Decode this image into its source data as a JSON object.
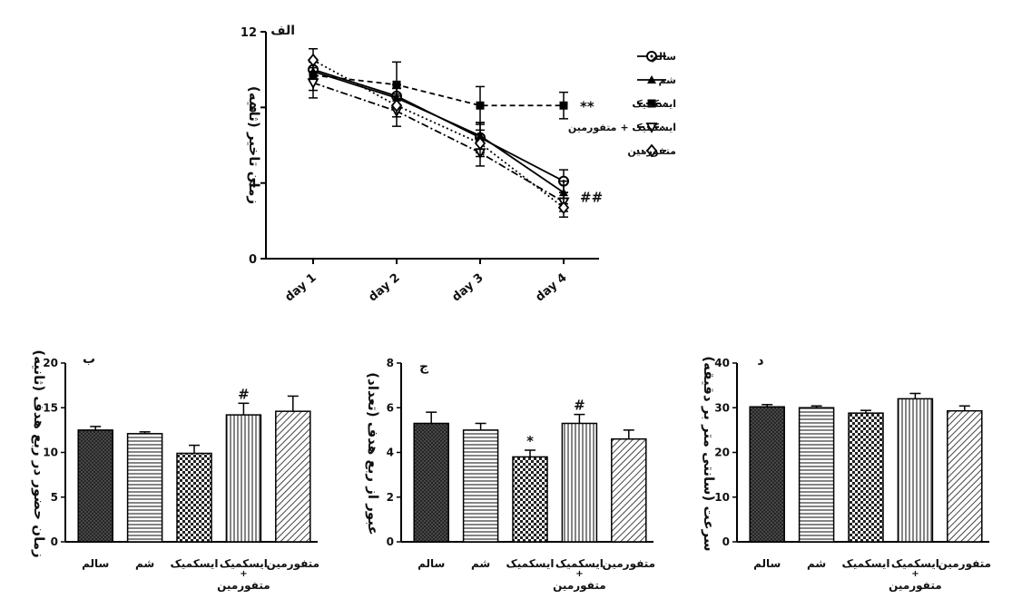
{
  "chart_data": [
    {
      "type": "line",
      "panel_label": "الف",
      "ylabel": "زمان تاخیر (ثانیه)",
      "categories": [
        "day 1",
        "day 2",
        "day 3",
        "day 4"
      ],
      "ylim": [
        0,
        12
      ],
      "yticks": [
        0,
        4,
        8,
        12
      ],
      "legend_position": "right",
      "series": [
        {
          "name": "سالم",
          "marker": "circle-dot",
          "dash": "solid",
          "values": [
            10.0,
            8.6,
            6.4,
            4.1
          ],
          "err": [
            0.5,
            0.6,
            0.8,
            0.6
          ]
        },
        {
          "name": "شم",
          "marker": "triangle-filled",
          "dash": "solid",
          "values": [
            9.9,
            8.5,
            6.5,
            3.5
          ],
          "err": [
            0.5,
            0.5,
            0.7,
            0.6
          ]
        },
        {
          "name": "ایسکمیک",
          "marker": "square-filled",
          "dash": "dashed",
          "values": [
            9.7,
            9.2,
            8.1,
            8.1
          ],
          "err": [
            0.8,
            1.2,
            1.0,
            0.7
          ]
        },
        {
          "name": "ایسکمیک + متفورمین",
          "marker": "triangle-down-open",
          "dash": "dashdot",
          "values": [
            9.3,
            7.8,
            5.6,
            3.0
          ],
          "err": [
            0.8,
            0.8,
            0.7,
            0.5
          ]
        },
        {
          "name": "متفورمین",
          "marker": "diamond-open",
          "dash": "dotted",
          "values": [
            10.5,
            8.1,
            6.1,
            2.7
          ],
          "err": [
            0.6,
            0.6,
            0.7,
            0.5
          ]
        }
      ],
      "annotations": [
        {
          "text": "**",
          "category": "day 4",
          "value": 8.1,
          "series": "ایسکمیک"
        },
        {
          "text": "##",
          "category": "day 4",
          "value": 3.3,
          "series": "ایسکمیک + متفورمین"
        }
      ]
    },
    {
      "type": "bar",
      "panel_label": "ب",
      "ylabel": "زمان حضور در ربع هدف (ثانیه)",
      "ylim": [
        0,
        20
      ],
      "yticks": [
        0,
        5,
        10,
        15,
        20
      ],
      "categories": [
        "سالم",
        "شم",
        "ایسکمیک",
        "ایسکمیک + متفورمین",
        "متفورمین"
      ],
      "values": [
        12.5,
        12.1,
        9.9,
        14.2,
        14.6
      ],
      "err": [
        0.4,
        0.2,
        0.9,
        1.3,
        1.7
      ],
      "annotations": [
        "",
        "",
        "",
        "#",
        ""
      ]
    },
    {
      "type": "bar",
      "panel_label": "ج",
      "ylabel": "عبور از ربع هدف (تعداد)",
      "ylim": [
        0,
        8
      ],
      "yticks": [
        0,
        2,
        4,
        6,
        8
      ],
      "categories": [
        "سالم",
        "شم",
        "ایسکمیک",
        "ایسکمیک + متفورمین",
        "متفورمین"
      ],
      "values": [
        5.3,
        5.0,
        3.8,
        5.3,
        4.6
      ],
      "err": [
        0.5,
        0.3,
        0.3,
        0.4,
        0.4
      ],
      "annotations": [
        "",
        "",
        "*",
        "#",
        ""
      ]
    },
    {
      "type": "bar",
      "panel_label": "د",
      "ylabel": "سرعت (سانتی متر بر دقیقه)",
      "ylim": [
        0,
        40
      ],
      "yticks": [
        0,
        10,
        20,
        30,
        40
      ],
      "categories": [
        "سالم",
        "شم",
        "ایسکمیک",
        "ایسکمیک + متفورمین",
        "متفورمین"
      ],
      "values": [
        30.2,
        30.0,
        28.8,
        32.0,
        29.3
      ],
      "err": [
        0.5,
        0.4,
        0.6,
        1.2,
        1.1
      ],
      "annotations": [
        "",
        "",
        "",
        "",
        ""
      ]
    }
  ],
  "bar_patterns": [
    "crosshatch-dark",
    "horizontal-lines",
    "checker",
    "vertical-lines",
    "diagonal-lines"
  ]
}
